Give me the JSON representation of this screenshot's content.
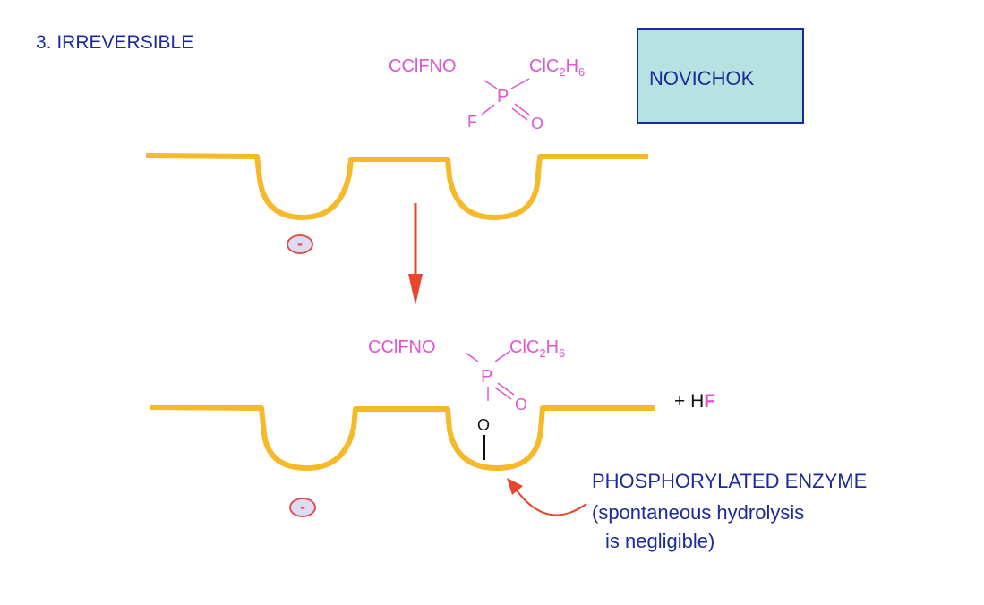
{
  "title": "3.   IRREVERSIBLE",
  "agent_box": {
    "label": "NOVICHOK"
  },
  "molecule_top": {
    "left_group": "CClFNO",
    "right_group": "ClC",
    "right_sub": "2",
    "right_tail": "H",
    "right_sub2": "6",
    "center": "P",
    "halogen": "F",
    "oxygen": "O"
  },
  "molecule_bottom": {
    "left_group": "CClFNO",
    "right_group": "ClC",
    "right_sub": "2",
    "right_tail": "H",
    "right_sub2": "6",
    "center": "P",
    "oxygen": "O",
    "bound_oxygen": "O"
  },
  "byproduct": {
    "prefix": "+ H",
    "halogen": "F"
  },
  "annotation": {
    "line1": "PHOSPHORYLATED ENZYME",
    "line2": "(spontaneous hydrolysis",
    "line3": "is negligible)"
  },
  "charge_label": "-",
  "colors": {
    "enzyme": "#f5b92a",
    "molecule": "#e055d0",
    "text": "#1d2a9a",
    "arrow": "#e8442e",
    "box_fill": "#b7e2e2"
  }
}
